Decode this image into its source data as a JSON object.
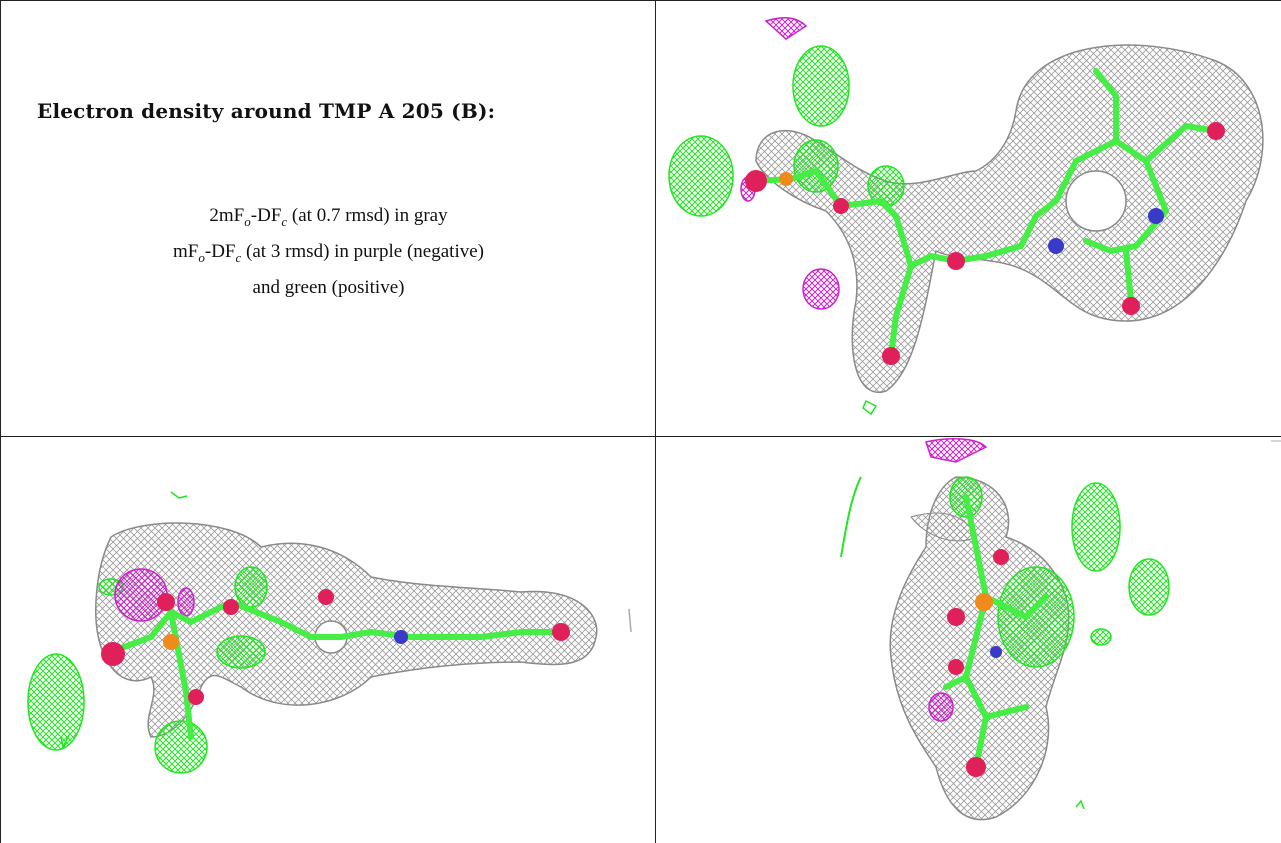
{
  "title": "Electron density around TMP A 205 (B):",
  "caption": {
    "line1_pre": "2mF",
    "line1_sub1": "o",
    "line1_mid": "-DF",
    "line1_sub2": "c",
    "line1_post": " (at 0.7 rmsd) in gray",
    "line2_pre": "mF",
    "line2_sub1": "o",
    "line2_mid": "-DF",
    "line2_sub2": "c",
    "line2_post": " (at 3 rmsd) in purple (negative)",
    "line3": "and green (positive)"
  },
  "colors": {
    "mesh_gray": "#9a9a9a",
    "positive_green": "#22e622",
    "negative_purple": "#cc22cc",
    "oxygen": "#e0205a",
    "nitrogen": "#3a3ac8",
    "phosphorus": "#f08a1a",
    "carbon": "#44ee44"
  },
  "panels": [
    {
      "view": "front"
    },
    {
      "view": "side"
    },
    {
      "view": "end-on"
    }
  ]
}
